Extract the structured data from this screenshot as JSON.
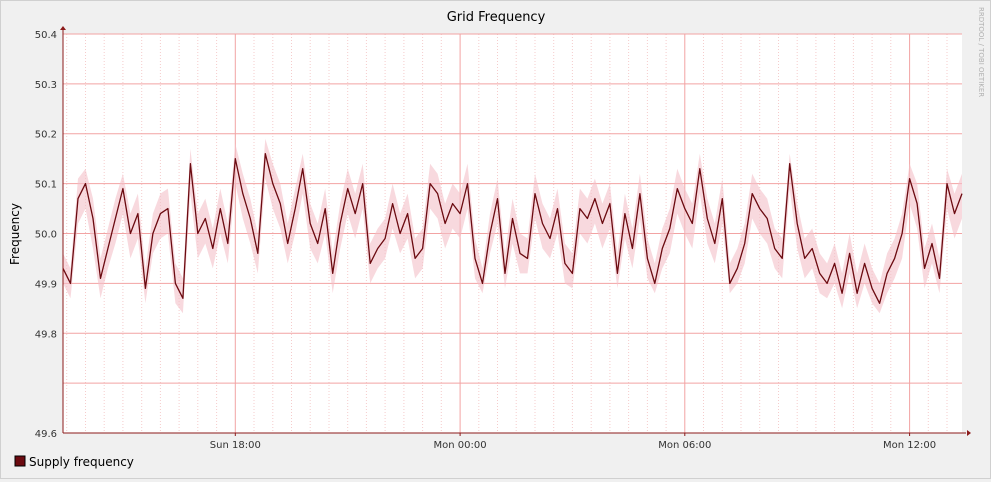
{
  "colors": {
    "background": "#f0f0f0",
    "canvas": "#ffffff",
    "major_grid": "#f2a3a3",
    "minor_grid": "#f5cccc",
    "axis": "#8b1a1a",
    "line": "#6b0a10",
    "envelope": "#f4c0c8",
    "watermark": "#b0b0b0"
  },
  "chart_data": {
    "type": "line",
    "title": "Grid Frequency",
    "ylabel": "Frequency",
    "xlabel": "",
    "watermark": "RRDTOOL / TOBI OETIKER",
    "ylim": [
      49.6,
      50.4
    ],
    "yticks": [
      "49.6",
      "49.8",
      "49.9",
      "50.0",
      "50.1",
      "50.2",
      "50.3",
      "50.4"
    ],
    "ytick_values": [
      49.6,
      49.8,
      49.9,
      50.0,
      50.1,
      50.2,
      50.3,
      50.4
    ],
    "minor_yticks": [
      49.7
    ],
    "x_start": "Sun 13:30",
    "x_end": "Mon 13:30",
    "xlim_hours": [
      13.4,
      37.4
    ],
    "xticks": [
      "Sun 18:00",
      "Mon 00:00",
      "Mon 06:00",
      "Mon 12:00"
    ],
    "xtick_hours": [
      18,
      24,
      30,
      36
    ],
    "minor_x_step_hours": 0.5,
    "legend": "bottom-left",
    "grid": true,
    "series": [
      {
        "name": "Supply frequency",
        "color": "#6b0a10",
        "x_hours": [
          13.4,
          13.6,
          13.8,
          14.0,
          14.2,
          14.4,
          14.6,
          14.8,
          15.0,
          15.2,
          15.4,
          15.6,
          15.8,
          16.0,
          16.2,
          16.4,
          16.6,
          16.8,
          17.0,
          17.2,
          17.4,
          17.6,
          17.8,
          18.0,
          18.2,
          18.4,
          18.6,
          18.8,
          19.0,
          19.2,
          19.4,
          19.6,
          19.8,
          20.0,
          20.2,
          20.4,
          20.6,
          20.8,
          21.0,
          21.2,
          21.4,
          21.6,
          21.8,
          22.0,
          22.2,
          22.4,
          22.6,
          22.8,
          23.0,
          23.2,
          23.4,
          23.6,
          23.8,
          24.0,
          24.2,
          24.4,
          24.6,
          24.8,
          25.0,
          25.2,
          25.4,
          25.6,
          25.8,
          26.0,
          26.2,
          26.4,
          26.6,
          26.8,
          27.0,
          27.2,
          27.4,
          27.6,
          27.8,
          28.0,
          28.2,
          28.4,
          28.6,
          28.8,
          29.0,
          29.2,
          29.4,
          29.6,
          29.8,
          30.0,
          30.2,
          30.4,
          30.6,
          30.8,
          31.0,
          31.2,
          31.4,
          31.6,
          31.8,
          32.0,
          32.2,
          32.4,
          32.6,
          32.8,
          33.0,
          33.2,
          33.4,
          33.6,
          33.8,
          34.0,
          34.2,
          34.4,
          34.6,
          34.8,
          35.0,
          35.2,
          35.4,
          35.6,
          35.8,
          36.0,
          36.2,
          36.4,
          36.6,
          36.8,
          37.0,
          37.2,
          37.4
        ],
        "values": [
          49.93,
          49.9,
          50.07,
          50.1,
          50.03,
          49.91,
          49.97,
          50.03,
          50.09,
          50.0,
          50.04,
          49.89,
          50.0,
          50.04,
          50.05,
          49.9,
          49.87,
          50.14,
          50.0,
          50.03,
          49.97,
          50.05,
          49.98,
          50.15,
          50.08,
          50.03,
          49.96,
          50.16,
          50.1,
          50.06,
          49.98,
          50.05,
          50.13,
          50.02,
          49.98,
          50.05,
          49.92,
          50.02,
          50.09,
          50.04,
          50.1,
          49.94,
          49.97,
          49.99,
          50.06,
          50.0,
          50.04,
          49.95,
          49.97,
          50.1,
          50.08,
          50.02,
          50.06,
          50.04,
          50.1,
          49.95,
          49.9,
          50.0,
          50.07,
          49.92,
          50.03,
          49.96,
          49.95,
          50.08,
          50.02,
          49.99,
          50.05,
          49.94,
          49.92,
          50.05,
          50.03,
          50.07,
          50.02,
          50.06,
          49.92,
          50.04,
          49.97,
          50.08,
          49.95,
          49.9,
          49.97,
          50.01,
          50.09,
          50.05,
          50.02,
          50.13,
          50.03,
          49.98,
          50.07,
          49.9,
          49.93,
          49.98,
          50.08,
          50.05,
          50.03,
          49.97,
          49.95,
          50.14,
          50.02,
          49.95,
          49.97,
          49.92,
          49.9,
          49.94,
          49.88,
          49.96,
          49.88,
          49.94,
          49.89,
          49.86,
          49.92,
          49.95,
          50.0,
          50.11,
          50.06,
          49.93,
          49.98,
          49.91,
          50.1,
          50.04,
          50.08
        ],
        "band_lower": [
          49.9,
          49.87,
          50.02,
          50.05,
          49.97,
          49.87,
          49.93,
          49.98,
          50.04,
          49.95,
          49.99,
          49.86,
          49.96,
          49.99,
          50.0,
          49.86,
          49.84,
          50.08,
          49.95,
          49.98,
          49.93,
          50.0,
          49.94,
          50.1,
          50.03,
          49.98,
          49.92,
          50.11,
          50.05,
          50.01,
          49.94,
          50.0,
          50.08,
          49.97,
          49.94,
          50.0,
          49.88,
          49.97,
          50.04,
          49.99,
          50.05,
          49.9,
          49.93,
          49.95,
          50.01,
          49.96,
          49.99,
          49.91,
          49.93,
          50.05,
          50.03,
          49.97,
          50.01,
          49.99,
          50.05,
          49.91,
          49.88,
          49.96,
          50.02,
          49.89,
          49.98,
          49.92,
          49.92,
          50.03,
          49.97,
          49.95,
          50.0,
          49.9,
          49.89,
          50.0,
          49.98,
          50.02,
          49.97,
          50.01,
          49.89,
          49.99,
          49.93,
          50.03,
          49.91,
          49.88,
          49.93,
          49.96,
          50.04,
          50.0,
          49.97,
          50.08,
          49.98,
          49.94,
          50.02,
          49.88,
          49.9,
          49.94,
          50.03,
          50.0,
          49.98,
          49.93,
          49.91,
          50.09,
          49.97,
          49.91,
          49.93,
          49.88,
          49.87,
          49.9,
          49.85,
          49.92,
          49.85,
          49.9,
          49.86,
          49.84,
          49.88,
          49.91,
          49.95,
          50.06,
          50.01,
          49.89,
          49.94,
          49.88,
          50.05,
          49.99,
          50.03
        ],
        "band_upper": [
          49.96,
          49.93,
          50.11,
          50.13,
          50.07,
          49.95,
          50.01,
          50.07,
          50.12,
          50.04,
          50.08,
          49.93,
          50.04,
          50.08,
          50.09,
          49.94,
          49.91,
          50.17,
          50.04,
          50.07,
          50.01,
          50.09,
          50.02,
          50.18,
          50.12,
          50.07,
          50.0,
          50.19,
          50.14,
          50.1,
          50.02,
          50.09,
          50.16,
          50.06,
          50.02,
          50.09,
          49.96,
          50.06,
          50.13,
          50.08,
          50.14,
          49.98,
          50.01,
          50.03,
          50.1,
          50.04,
          50.08,
          49.99,
          50.01,
          50.14,
          50.12,
          50.06,
          50.1,
          50.08,
          50.14,
          49.99,
          49.93,
          50.04,
          50.11,
          49.96,
          50.07,
          50.0,
          49.99,
          50.12,
          50.06,
          50.03,
          50.09,
          49.98,
          49.96,
          50.09,
          50.07,
          50.11,
          50.06,
          50.1,
          49.96,
          50.08,
          50.01,
          50.12,
          49.99,
          49.94,
          50.01,
          50.05,
          50.13,
          50.09,
          50.06,
          50.16,
          50.07,
          50.02,
          50.11,
          49.94,
          49.97,
          50.02,
          50.12,
          50.09,
          50.07,
          50.01,
          49.99,
          50.16,
          50.06,
          49.99,
          50.01,
          49.96,
          49.94,
          49.98,
          49.92,
          50.0,
          49.92,
          49.98,
          49.93,
          49.9,
          49.96,
          49.99,
          50.04,
          50.14,
          50.1,
          49.97,
          50.02,
          49.95,
          50.13,
          50.08,
          50.12
        ]
      }
    ]
  }
}
